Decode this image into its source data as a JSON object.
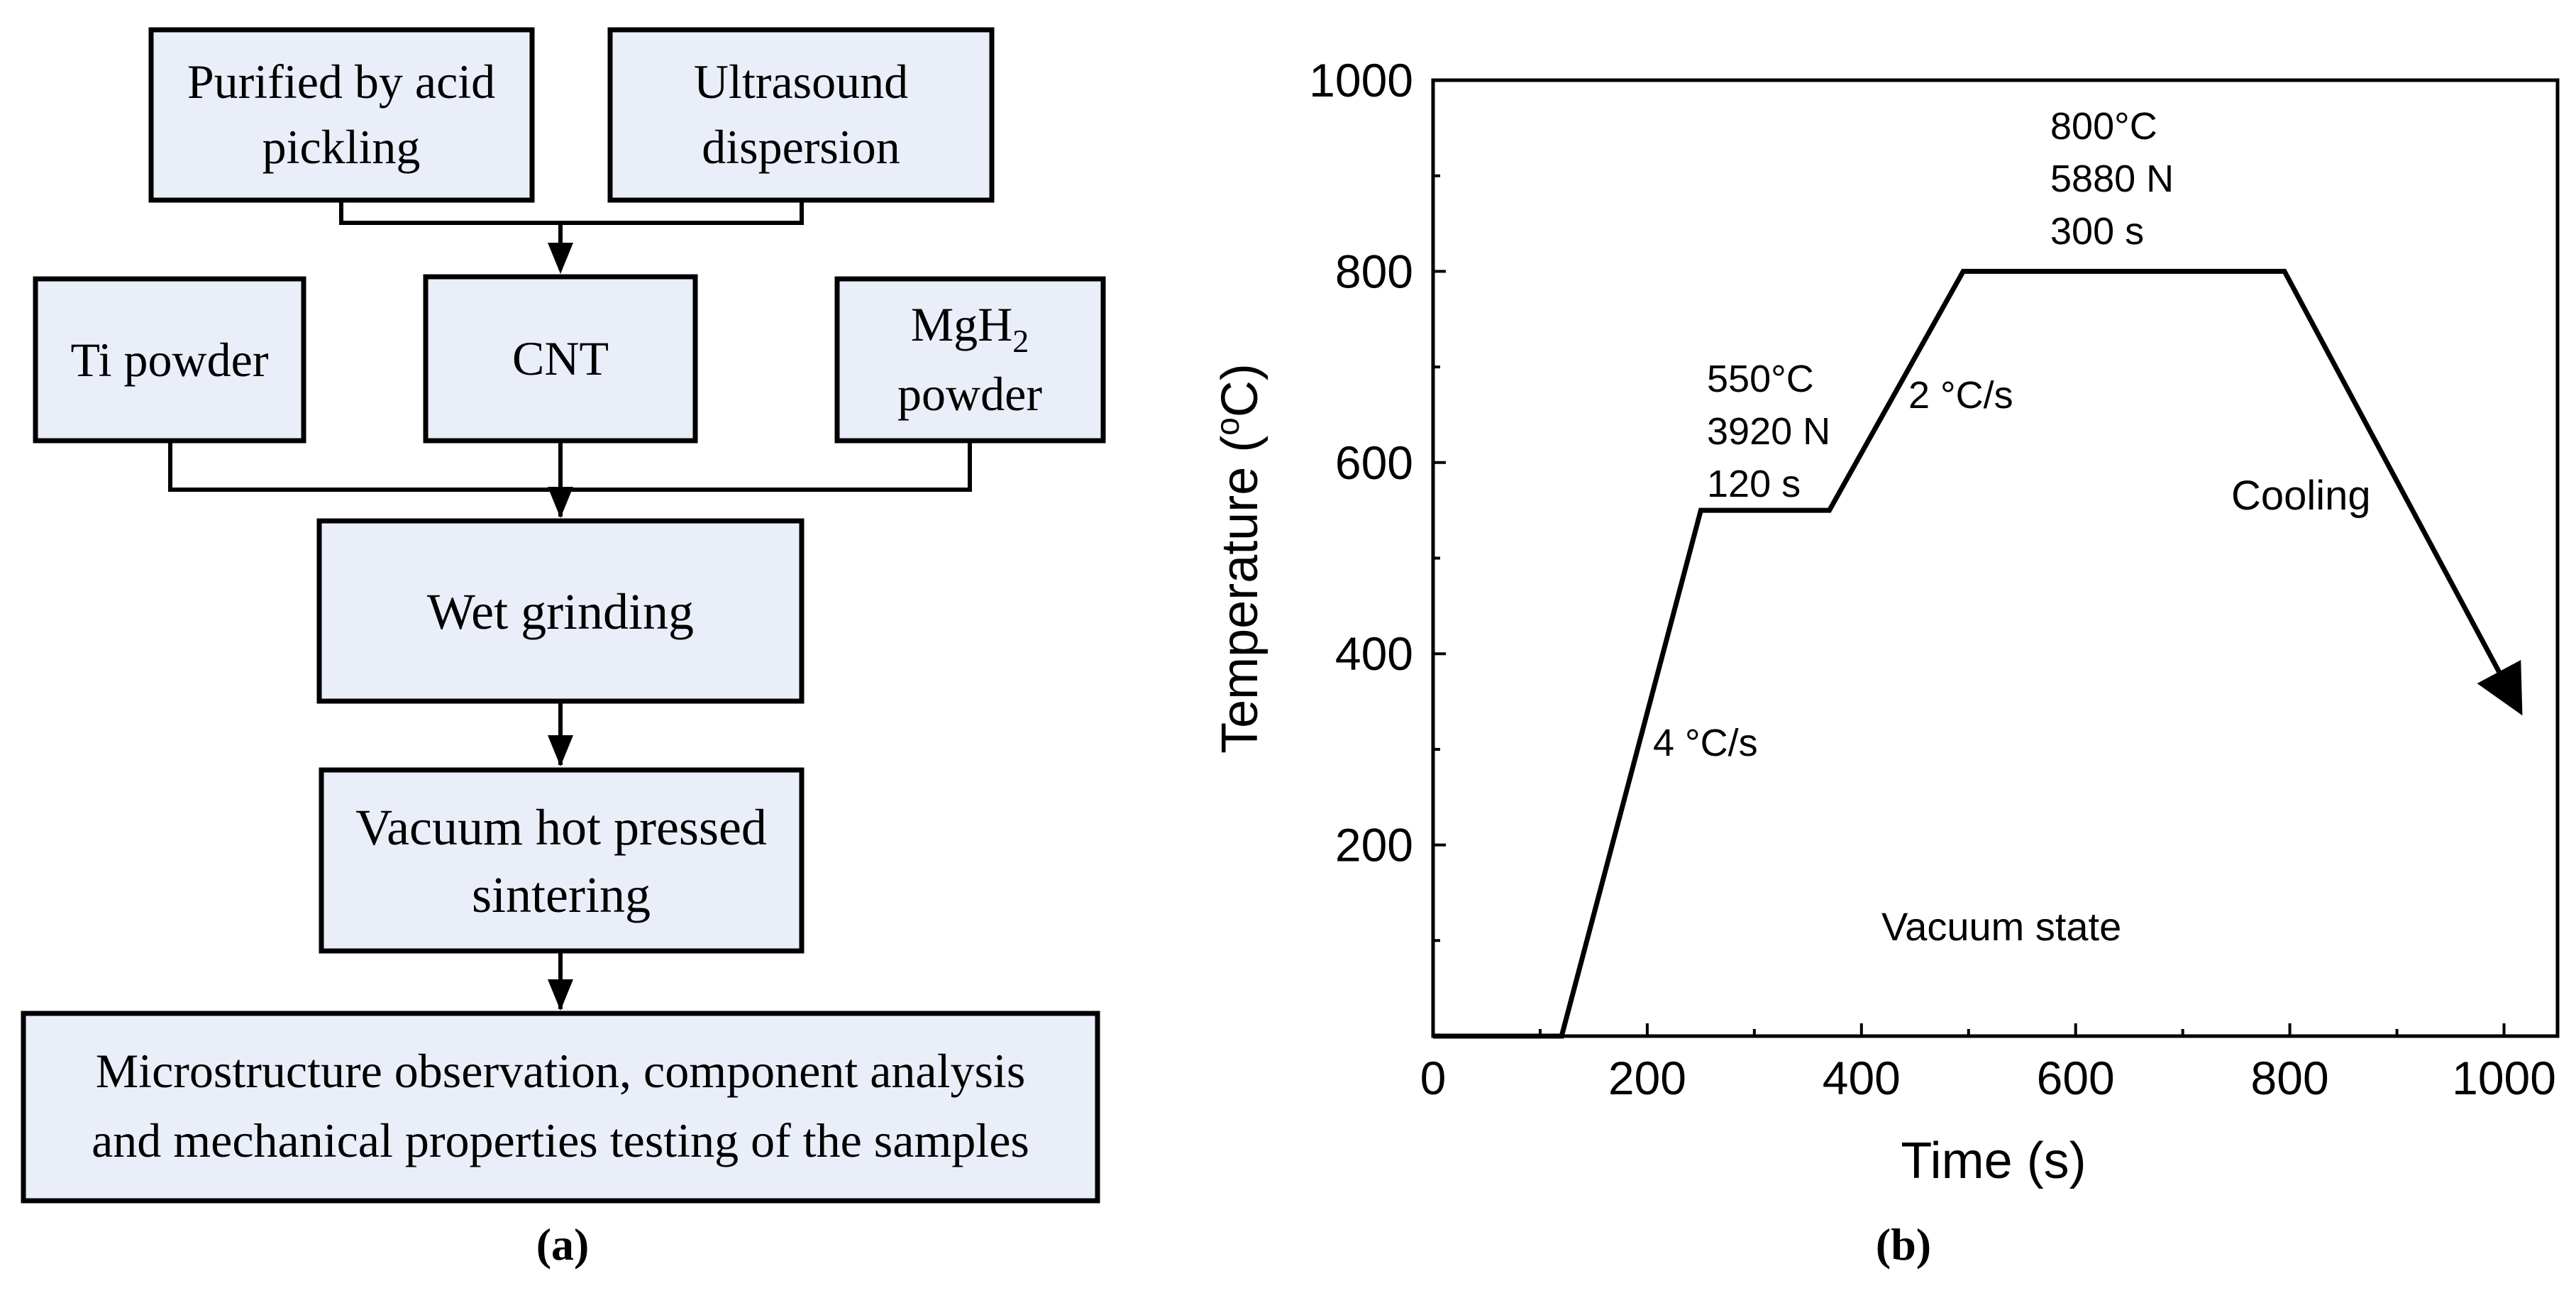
{
  "flowchart": {
    "boxes": {
      "acid": {
        "line1": "Purified by acid",
        "line2": "pickling"
      },
      "ultrasound": {
        "line1": "Ultrasound",
        "line2": "dispersion"
      },
      "ti": {
        "label": "Ti powder"
      },
      "cnt": {
        "label": "CNT"
      },
      "mgh2": {
        "line1_main": "MgH",
        "line1_sub": "2",
        "line2": "powder"
      },
      "wet": {
        "label": "Wet grinding"
      },
      "vacuum": {
        "line1": "Vacuum hot pressed",
        "line2": "sintering"
      },
      "micro": {
        "line1": "Microstructure observation, component analysis",
        "line2": "and mechanical properties testing of the samples"
      }
    },
    "caption": "(a)"
  },
  "colors": {
    "box_fill": "#e9eef8",
    "stroke": "#000000"
  },
  "chart_data": {
    "type": "line",
    "caption": "(b)",
    "xlabel": "Time (s)",
    "ylabel_main": "Temperature (",
    "ylabel_sup": "o",
    "ylabel_end": "C)",
    "xlim": [
      0,
      1050
    ],
    "ylim": [
      0,
      1000
    ],
    "xticks": [
      0,
      200,
      400,
      600,
      800,
      1000
    ],
    "xtick_labels": [
      "0",
      "200",
      "400",
      "600",
      "800",
      "1000"
    ],
    "yticks": [
      200,
      400,
      600,
      800,
      1000
    ],
    "ytick_labels": [
      "200",
      "400",
      "600",
      "800",
      "1000"
    ],
    "series": [
      {
        "name": "temperature profile",
        "x": [
          0,
          120,
          250,
          370,
          495,
          795,
          1015
        ],
        "y": [
          0,
          0,
          550,
          550,
          800,
          800,
          340
        ]
      }
    ],
    "annotations": [
      {
        "id": "seg1",
        "lines": [
          "4 °C/s"
        ]
      },
      {
        "id": "hold1",
        "lines": [
          "550°C",
          "3920 N",
          "120 s"
        ]
      },
      {
        "id": "seg2",
        "lines": [
          "2 °C/s"
        ]
      },
      {
        "id": "hold2",
        "lines": [
          "800°C",
          "5880 N",
          "300 s"
        ]
      },
      {
        "id": "cooling",
        "lines": [
          "Cooling"
        ]
      },
      {
        "id": "vacuum",
        "lines": [
          "Vacuum state"
        ]
      }
    ]
  }
}
